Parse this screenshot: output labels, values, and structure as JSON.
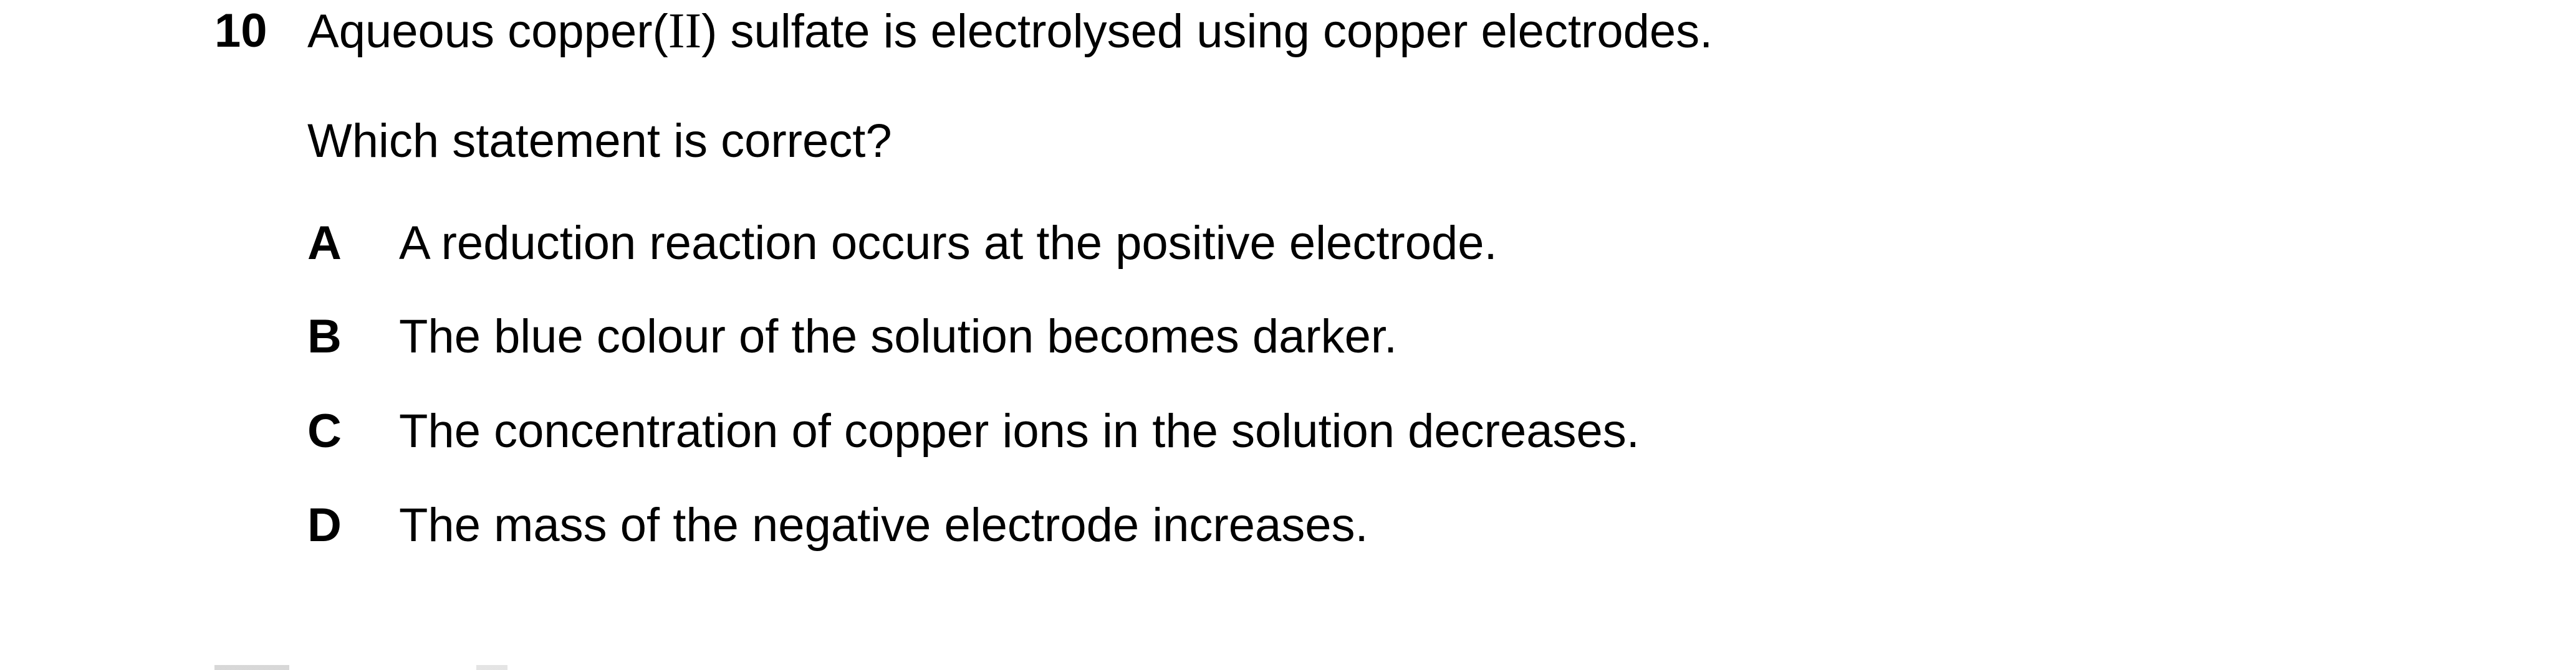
{
  "question": {
    "number": "10",
    "stem_before": "Aqueous copper(",
    "stem_roman": "II",
    "stem_after": ") sulfate is electrolysed using copper electrodes.",
    "prompt": "Which statement is correct?"
  },
  "options": [
    {
      "letter": "A",
      "text": "A reduction reaction occurs at the positive electrode."
    },
    {
      "letter": "B",
      "text": "The blue colour of the solution becomes darker."
    },
    {
      "letter": "C",
      "text": "The concentration of copper ions in the solution decreases."
    },
    {
      "letter": "D",
      "text": "The mass of the negative electrode increases."
    }
  ]
}
